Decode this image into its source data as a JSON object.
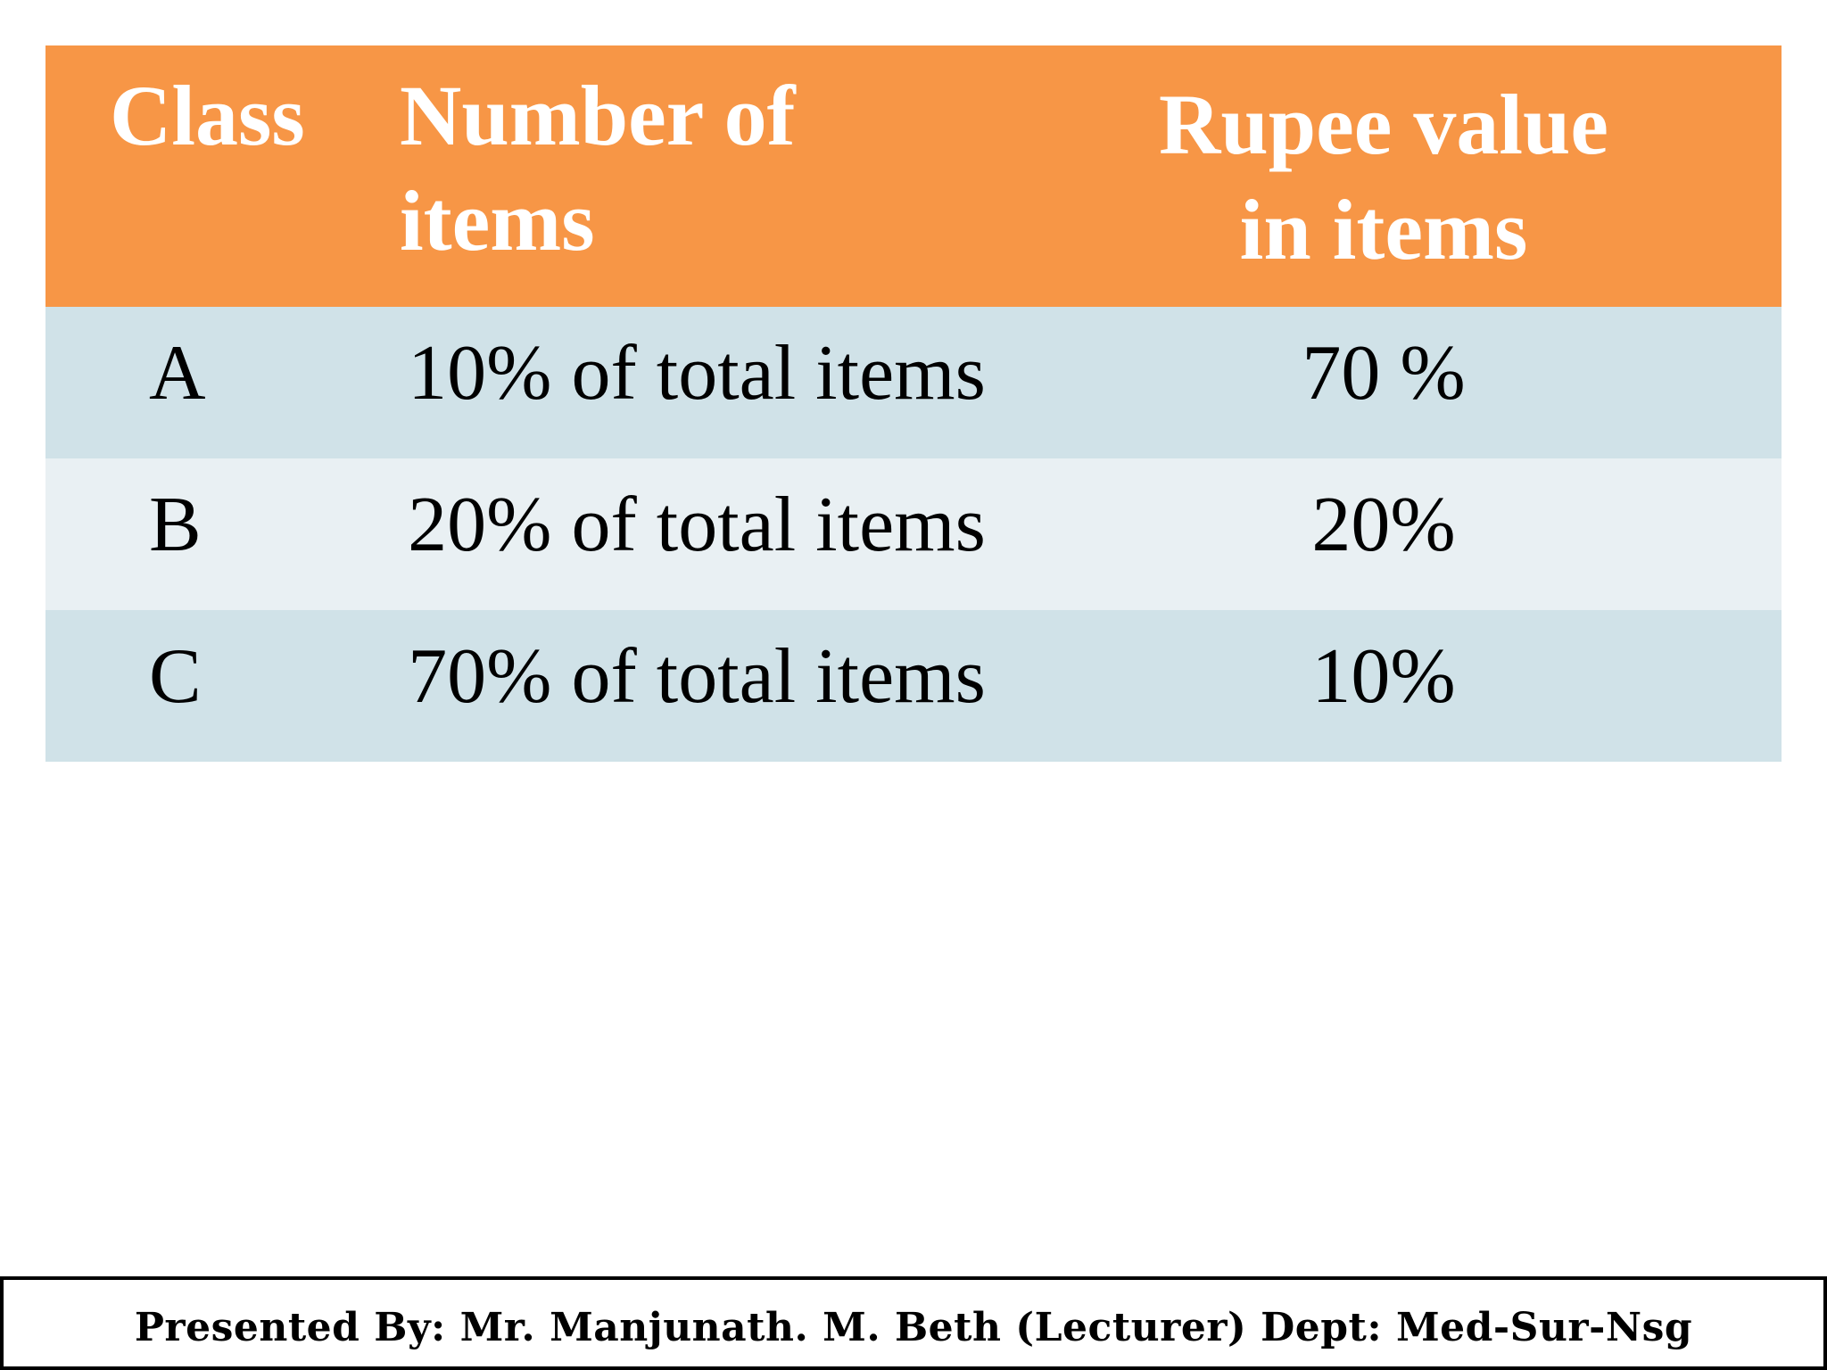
{
  "table": {
    "header": {
      "class": "Class",
      "number_line1": "Number of",
      "number_line2": "items",
      "rupee_line1": "Rupee value",
      "rupee_line2": "in items"
    },
    "rows": [
      {
        "class": "A",
        "number": "10% of total items",
        "rupee": "70 %"
      },
      {
        "class": "B",
        "number": "20% of total items",
        "rupee": "20%"
      },
      {
        "class": "C",
        "number": "70% of total items",
        "rupee": "10%"
      }
    ],
    "colors": {
      "header_bg": "#f79646",
      "row_odd_bg": "#d0e2e8",
      "row_even_bg": "#e9f0f3",
      "header_text": "#ffffff"
    }
  },
  "footer": {
    "text": "Presented By: Mr. Manjunath. M. Beth (Lecturer) Dept: Med-Sur-Nsg"
  }
}
